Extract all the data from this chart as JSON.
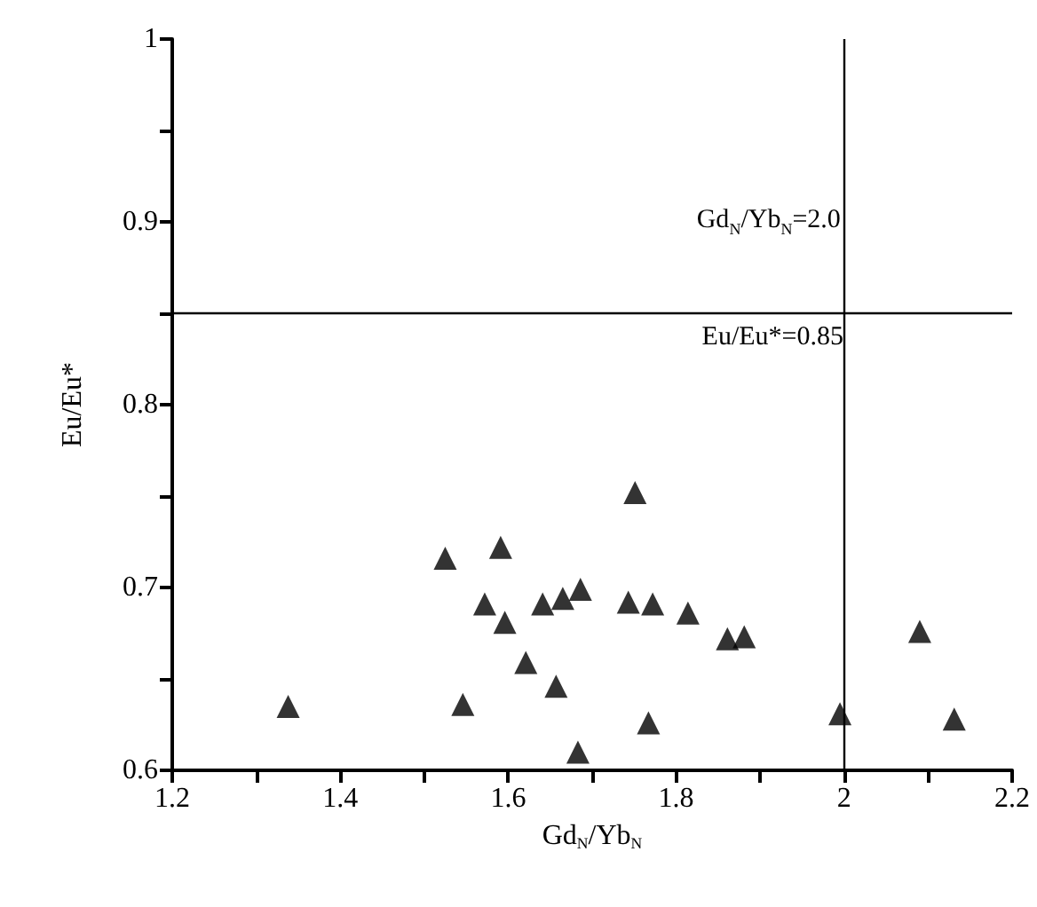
{
  "chart_data": {
    "type": "scatter",
    "xlabel": "Gd$_{N}$/Yb$_{N}$",
    "ylabel": "Eu/Eu*",
    "x": [
      1.338,
      1.525,
      1.546,
      1.572,
      1.591,
      1.596,
      1.621,
      1.641,
      1.657,
      1.665,
      1.683,
      1.686,
      1.743,
      1.751,
      1.767,
      1.772,
      1.814,
      1.861,
      1.881,
      1.995,
      2.09,
      2.131
    ],
    "series": [
      {
        "color": "#000000",
        "values": [
          0.635,
          0.716,
          0.636,
          0.691,
          0.722,
          0.681,
          0.659,
          0.691,
          0.646,
          0.694,
          0.61,
          0.699,
          0.692,
          0.752,
          0.626,
          0.691,
          0.686,
          0.672,
          0.673,
          0.631,
          0.676,
          0.628
        ]
      }
    ],
    "xlim": [
      1.2,
      2.2
    ],
    "xticks": [
      1.2,
      {
        "value": 1.3,
        "label": null
      },
      1.4,
      {
        "value": 1.5,
        "label": null
      },
      1.6,
      {
        "value": 1.7,
        "label": null
      },
      1.8,
      {
        "value": 1.9,
        "label": null
      },
      {
        "value": 2,
        "label": "2"
      },
      {
        "value": 2.1,
        "label": null
      },
      2.2
    ],
    "ylim": [
      0.6,
      1
    ],
    "yticks": [
      0.6,
      {
        "value": 0.65,
        "label": null
      },
      0.7,
      {
        "value": 0.75,
        "label": null
      },
      0.8,
      {
        "value": 0.85,
        "label": null
      },
      0.9,
      {
        "value": 0.95,
        "label": null
      },
      {
        "value": 1,
        "label": "1"
      }
    ],
    "ref_lines": [
      {
        "axis": "x",
        "value": 2.0,
        "label": "Gd$_{N}$/Yb$_{N}$=2.0",
        "color": "#000000"
      },
      {
        "axis": "y",
        "value": 0.85,
        "label": "Eu/Eu*=0.85",
        "color": "#000000"
      }
    ],
    "marker": "triangle",
    "grid": false
  }
}
